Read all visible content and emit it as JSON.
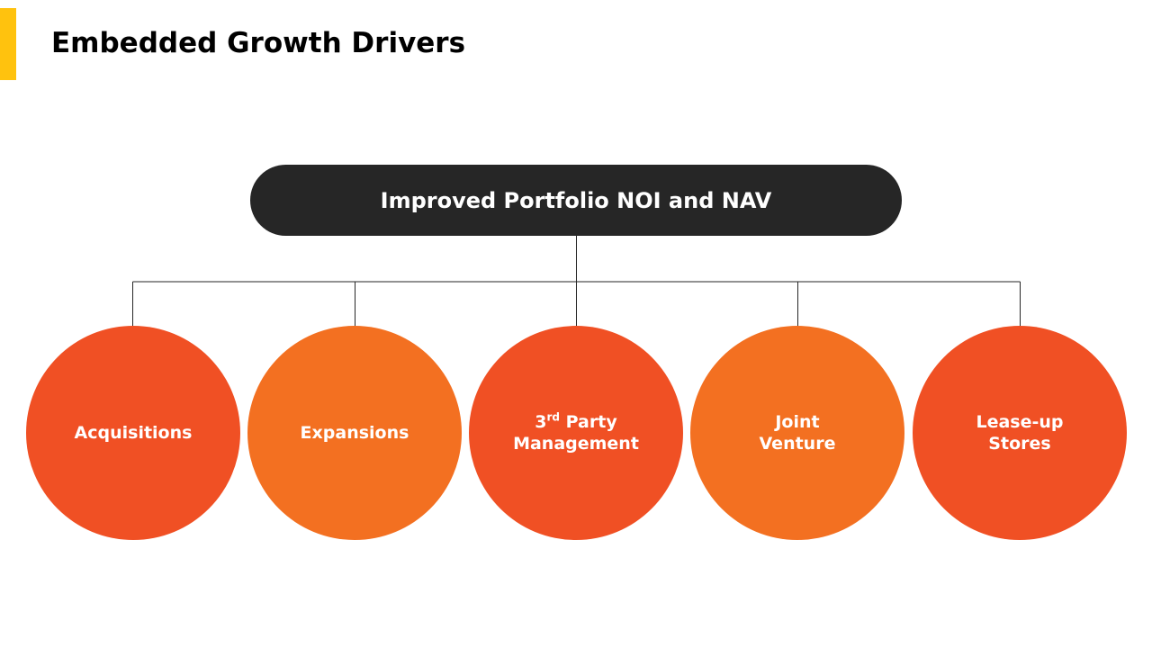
{
  "slide": {
    "title": "Embedded Growth Drivers",
    "accent_color": "#FFC20E"
  },
  "top_node": {
    "label": "Improved Portfolio NOI and NAV",
    "color": "#262626"
  },
  "drivers": [
    {
      "line1": "Acquisitions",
      "color": "#F05024"
    },
    {
      "line1": "Expansions",
      "color": "#F37021"
    },
    {
      "line1_prefix": "3",
      "line1_sup": "rd",
      "line1_suffix": " Party",
      "line2": "Management",
      "color": "#F05024"
    },
    {
      "line1": "Joint",
      "line2": "Venture",
      "color": "#F37021"
    },
    {
      "line1": "Lease-up",
      "line2": "Stores",
      "color": "#F05024"
    }
  ]
}
